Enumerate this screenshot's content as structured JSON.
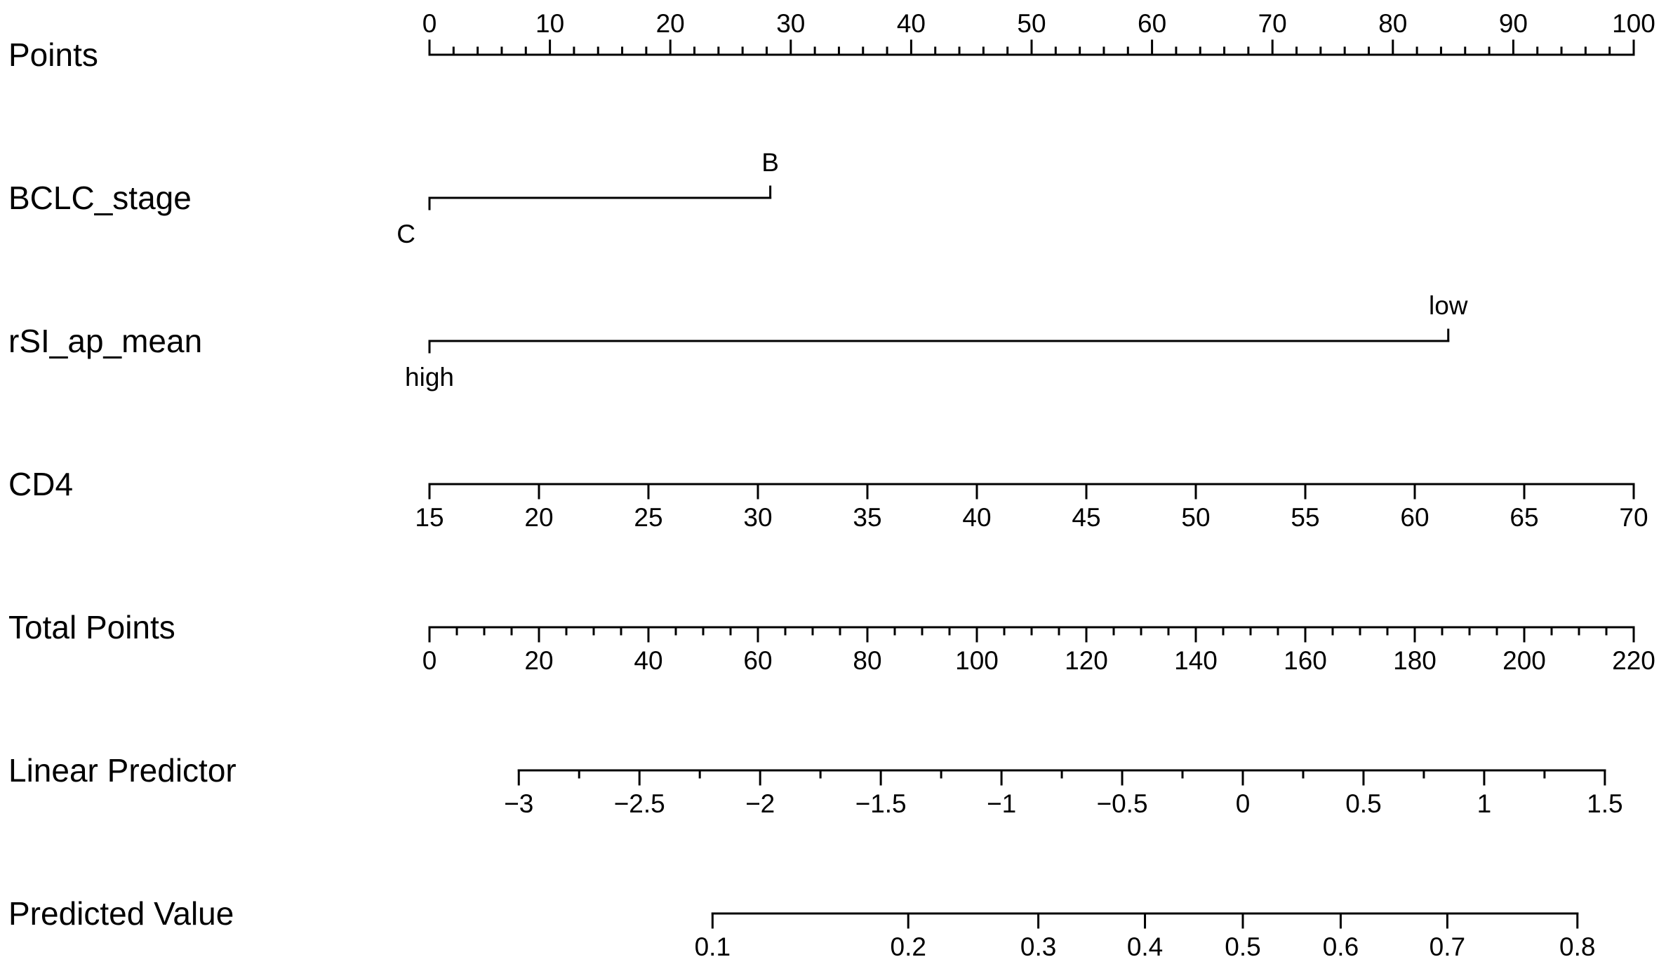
{
  "chart_data": {
    "type": "nomogram",
    "title": "",
    "points_scale": {
      "min": 0,
      "max": 100
    },
    "rows": [
      {
        "key": "points",
        "label": "Points",
        "kind": "numeric",
        "ticks_side": "top",
        "range": [
          0,
          100
        ],
        "major": [
          {
            "v": 0,
            "label": "0"
          },
          {
            "v": 10,
            "label": "10"
          },
          {
            "v": 20,
            "label": "20"
          },
          {
            "v": 30,
            "label": "30"
          },
          {
            "v": 40,
            "label": "40"
          },
          {
            "v": 50,
            "label": "50"
          },
          {
            "v": 60,
            "label": "60"
          },
          {
            "v": 70,
            "label": "70"
          },
          {
            "v": 80,
            "label": "80"
          },
          {
            "v": 90,
            "label": "90"
          },
          {
            "v": 100,
            "label": "100"
          }
        ],
        "minor_step": 2
      },
      {
        "key": "bclc_stage",
        "label": "BCLC_stage",
        "kind": "categorical",
        "points_range": [
          0,
          28.3
        ],
        "categories": [
          {
            "label": "C",
            "points": 0,
            "label_side": "below"
          },
          {
            "label": "B",
            "points": 28.3,
            "label_side": "above"
          }
        ]
      },
      {
        "key": "rsi_ap_mean",
        "label": "rSI_ap_mean",
        "kind": "categorical",
        "points_range": [
          0,
          84.6
        ],
        "categories": [
          {
            "label": "high",
            "points": 0,
            "label_side": "below"
          },
          {
            "label": "low",
            "points": 84.6,
            "label_side": "above"
          }
        ]
      },
      {
        "key": "cd4",
        "label": "CD4",
        "kind": "numeric",
        "ticks_side": "bottom",
        "range": [
          15,
          70
        ],
        "points_at_range": [
          0,
          100
        ],
        "major": [
          {
            "v": 15,
            "label": "15"
          },
          {
            "v": 20,
            "label": "20"
          },
          {
            "v": 25,
            "label": "25"
          },
          {
            "v": 30,
            "label": "30"
          },
          {
            "v": 35,
            "label": "35"
          },
          {
            "v": 40,
            "label": "40"
          },
          {
            "v": 45,
            "label": "45"
          },
          {
            "v": 50,
            "label": "50"
          },
          {
            "v": 55,
            "label": "55"
          },
          {
            "v": 60,
            "label": "60"
          },
          {
            "v": 65,
            "label": "65"
          },
          {
            "v": 70,
            "label": "70"
          }
        ],
        "minor_step": 0
      },
      {
        "key": "total_points",
        "label": "Total Points",
        "kind": "numeric",
        "ticks_side": "bottom",
        "range": [
          0,
          220
        ],
        "major": [
          {
            "v": 0,
            "label": "0"
          },
          {
            "v": 20,
            "label": "20"
          },
          {
            "v": 40,
            "label": "40"
          },
          {
            "v": 60,
            "label": "60"
          },
          {
            "v": 80,
            "label": "80"
          },
          {
            "v": 100,
            "label": "100"
          },
          {
            "v": 120,
            "label": "120"
          },
          {
            "v": 140,
            "label": "140"
          },
          {
            "v": 160,
            "label": "160"
          },
          {
            "v": 180,
            "label": "180"
          },
          {
            "v": 200,
            "label": "200"
          },
          {
            "v": 220,
            "label": "220"
          }
        ],
        "minor_step": 5
      },
      {
        "key": "linear_predictor",
        "label": "Linear Predictor",
        "kind": "numeric",
        "ticks_side": "bottom",
        "range": [
          -3,
          1.5
        ],
        "total_points_at_range": [
          16.3,
          214.7
        ],
        "major": [
          {
            "v": -3,
            "label": "−3"
          },
          {
            "v": -2.5,
            "label": "−2.5"
          },
          {
            "v": -2,
            "label": "−2"
          },
          {
            "v": -1.5,
            "label": "−1.5"
          },
          {
            "v": -1,
            "label": "−1"
          },
          {
            "v": -0.5,
            "label": "−0.5"
          },
          {
            "v": 0,
            "label": "0"
          },
          {
            "v": 0.5,
            "label": "0.5"
          },
          {
            "v": 1,
            "label": "1"
          },
          {
            "v": 1.5,
            "label": "1.5"
          }
        ],
        "minor_step": 0.25
      },
      {
        "key": "predicted_value",
        "label": "Predicted Value",
        "kind": "probability",
        "ticks_side": "bottom",
        "range": [
          0.1,
          0.8
        ],
        "major": [
          {
            "v": 0.1,
            "label": "0.1"
          },
          {
            "v": 0.2,
            "label": "0.2"
          },
          {
            "v": 0.3,
            "label": "0.3"
          },
          {
            "v": 0.4,
            "label": "0.4"
          },
          {
            "v": 0.5,
            "label": "0.5"
          },
          {
            "v": 0.6,
            "label": "0.6"
          },
          {
            "v": 0.7,
            "label": "0.7"
          },
          {
            "v": 0.8,
            "label": "0.8"
          }
        ],
        "minor_step": 0
      }
    ],
    "lp_from_total_points": {
      "lp_at_tp0": -3.37,
      "lp_per_tp": 0.02268
    },
    "grid": false,
    "legend": "none"
  }
}
